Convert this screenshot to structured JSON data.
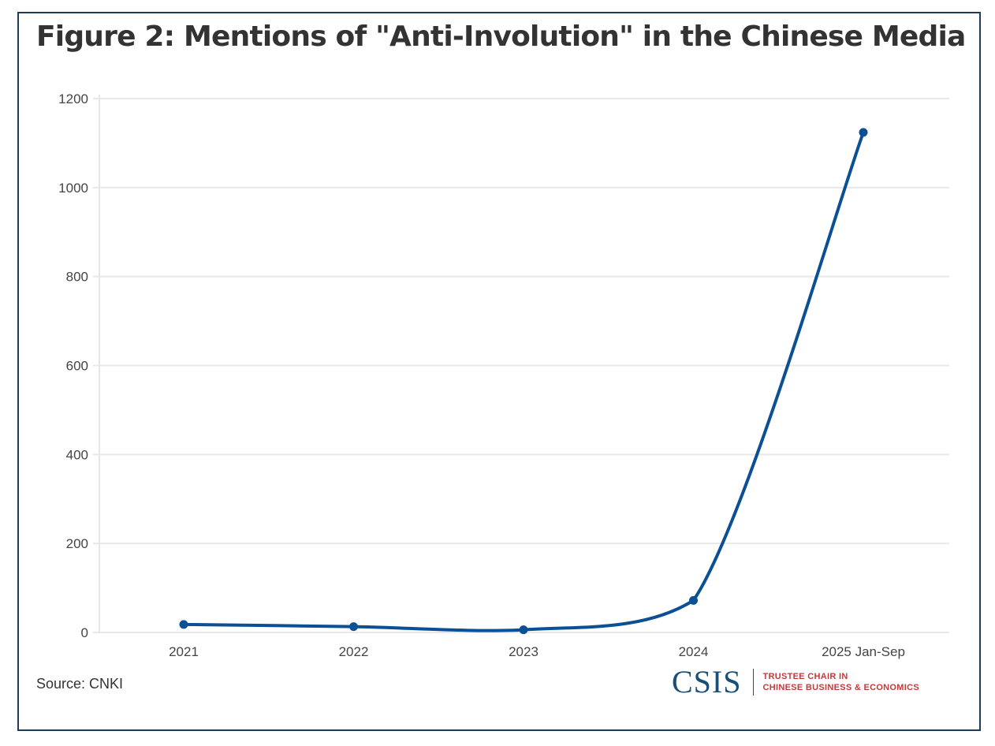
{
  "chart_data": {
    "type": "line",
    "title": "Figure 2: Mentions of \"Anti-Involution\" in the Chinese Media",
    "categories": [
      "2021",
      "2022",
      "2023",
      "2024",
      "2025 Jan-Sep"
    ],
    "series": [
      {
        "name": "Mentions",
        "values": [
          18,
          13,
          6,
          72,
          1124
        ]
      }
    ],
    "xlabel": "",
    "ylabel": "",
    "ylim": [
      0,
      1200
    ],
    "yticks": [
      "0",
      "200",
      "400",
      "600",
      "800",
      "1000",
      "1200"
    ],
    "grid": true,
    "line_color": "#0b4f94",
    "source": "Source: CNKI"
  },
  "branding": {
    "logo_text": "CSIS",
    "line1": "TRUSTEE CHAIR IN",
    "line2": "CHINESE BUSINESS & ECONOMICS"
  }
}
